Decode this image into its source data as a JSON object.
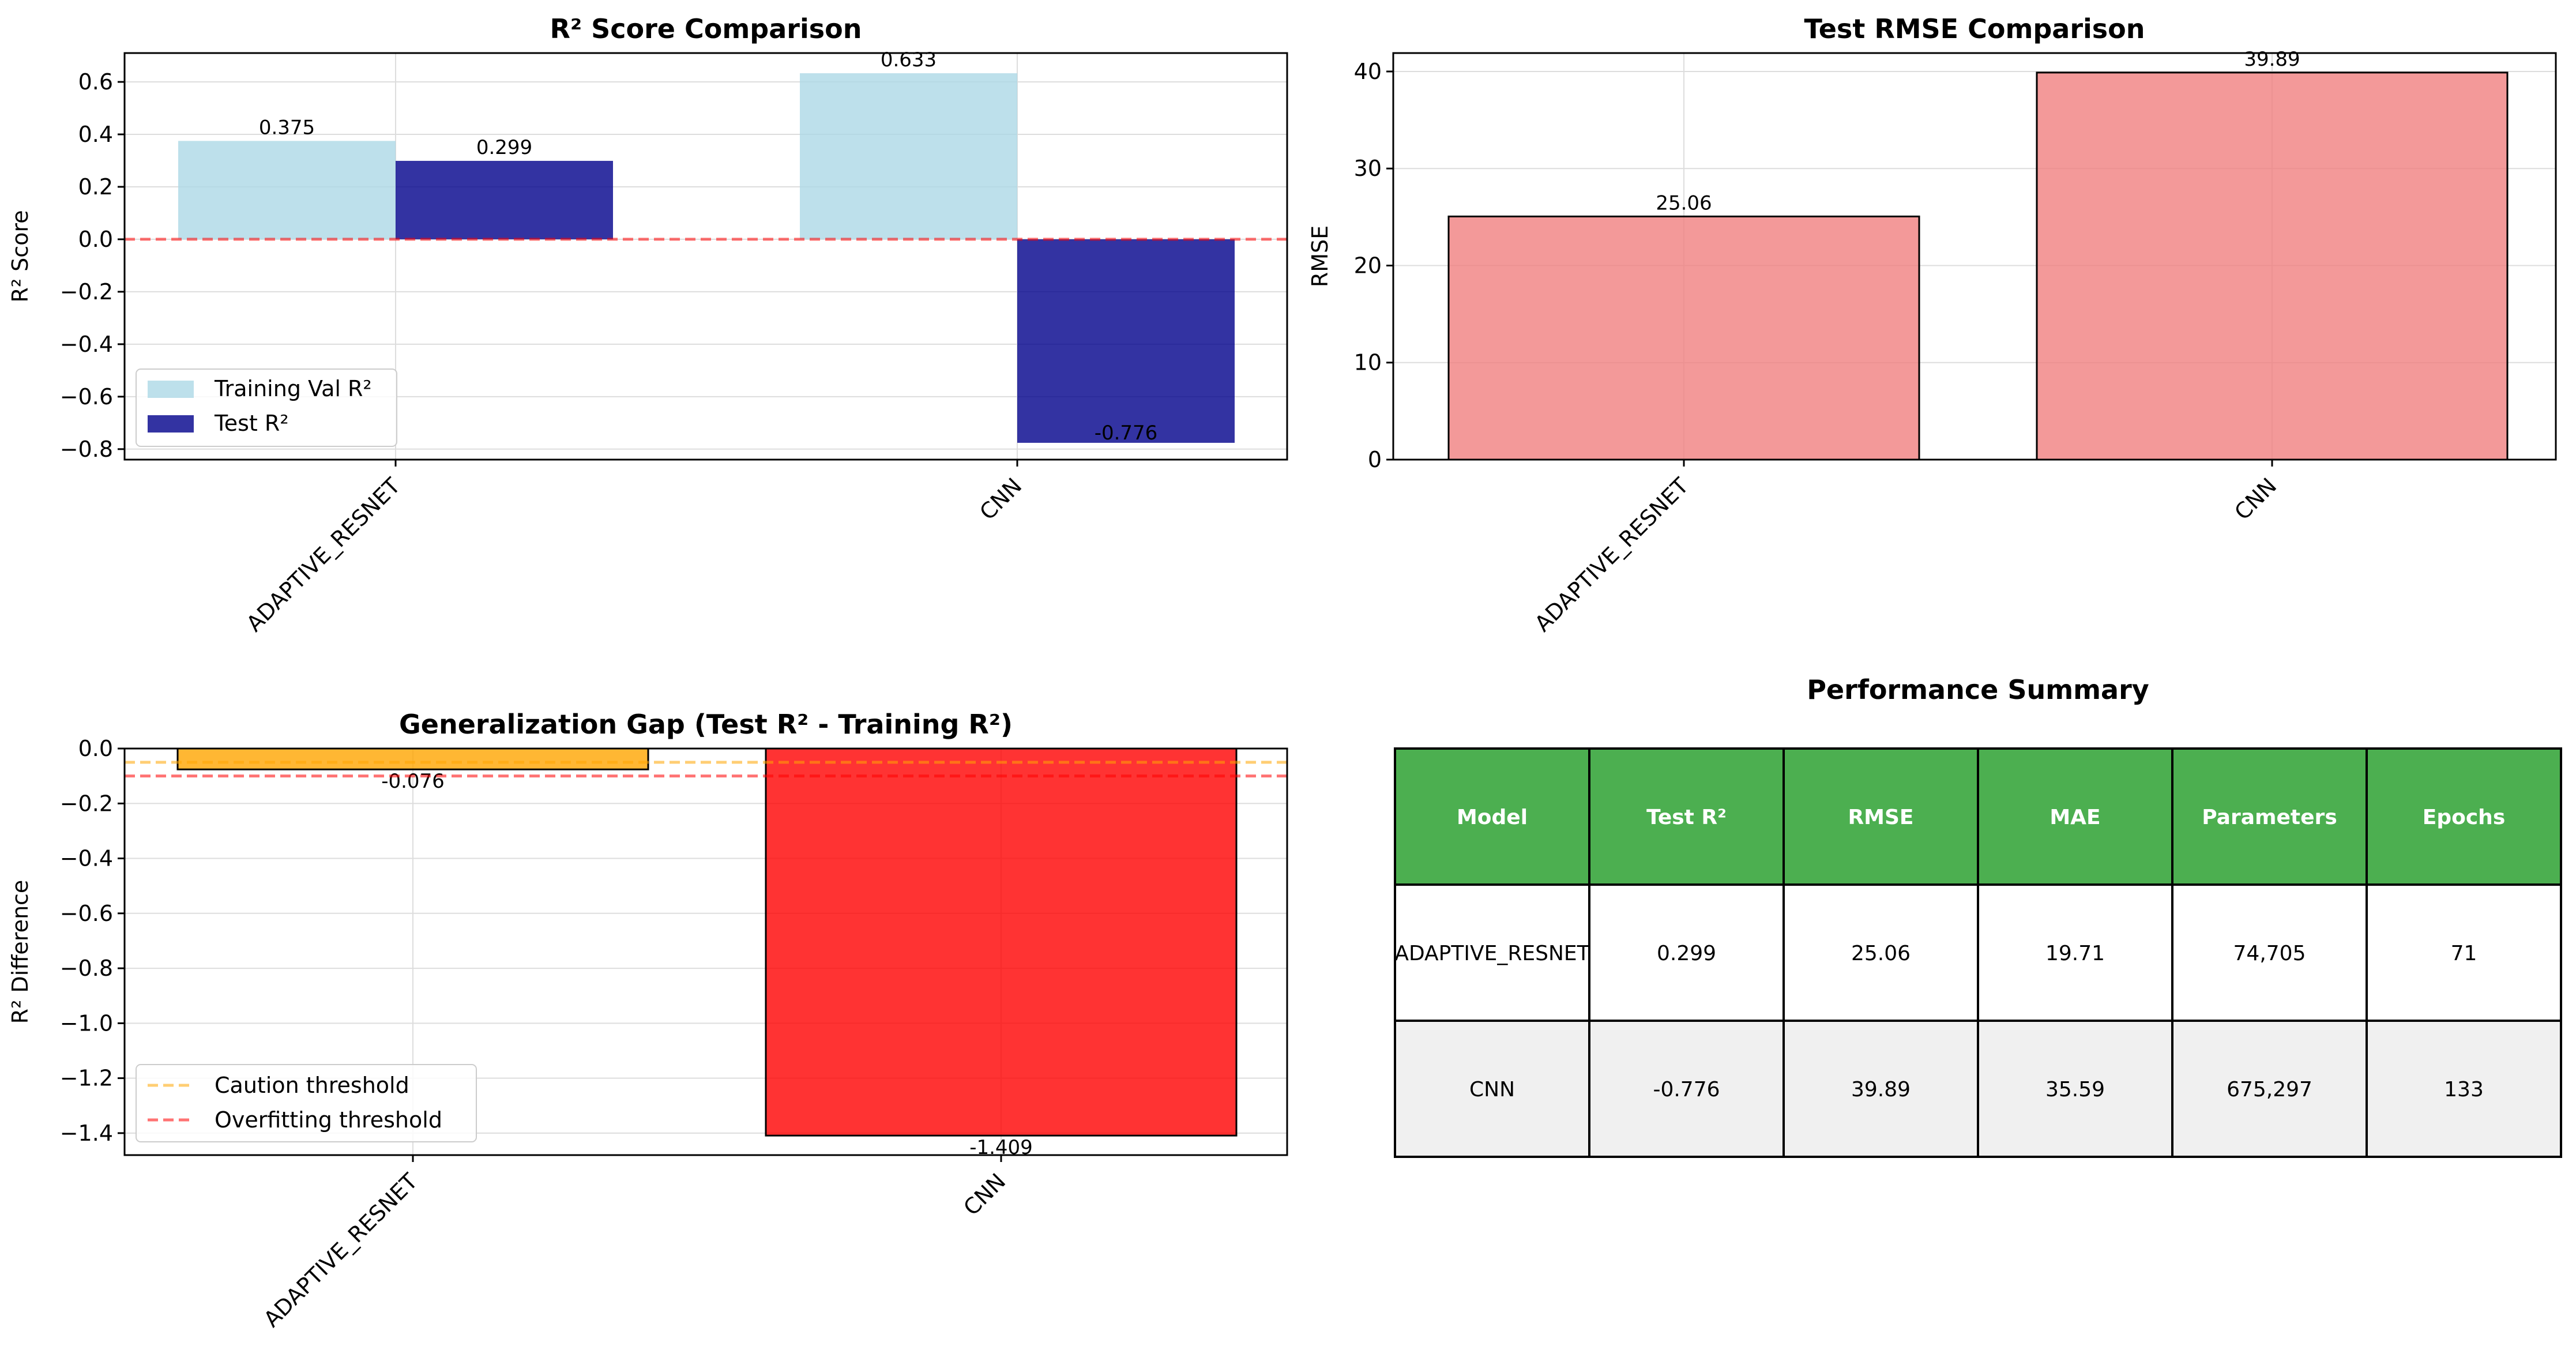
{
  "colors": {
    "train_bar": "#add8e6",
    "test_bar": "#00008b",
    "rmse_bar": "#f08080",
    "gap_small": "#ffa500",
    "gap_large": "#ff0000",
    "zero_line": "#ff0000",
    "caution_line": "#ffa500",
    "overfit_line": "#ff0000",
    "table_header": "#4caf50",
    "table_alt_row": "#f0f0f0"
  },
  "chart_data": [
    {
      "type": "bar",
      "title": "R² Score Comparison",
      "xlabel": "",
      "ylabel": "R² Score",
      "categories": [
        "ADAPTIVE_RESNET",
        "CNN"
      ],
      "series": [
        {
          "name": "Training Val R²",
          "values": [
            0.375,
            0.633
          ],
          "labels": [
            "0.375",
            "0.633"
          ],
          "color": "#add8e6"
        },
        {
          "name": "Test R²",
          "values": [
            0.299,
            -0.776
          ],
          "labels": [
            "0.299",
            "-0.776"
          ],
          "color": "#00008b"
        }
      ],
      "ylim": [
        -0.84,
        0.71
      ],
      "yticks": [
        0.6,
        0.4,
        0.2,
        0.0,
        -0.2,
        -0.4,
        -0.6,
        -0.8
      ],
      "ytick_labels": [
        "0.6",
        "0.4",
        "0.2",
        "0.0",
        "−0.2",
        "−0.4",
        "−0.6",
        "−0.8"
      ],
      "reference_line": 0.0,
      "grid": true,
      "legend_position": "lower-left"
    },
    {
      "type": "bar",
      "title": "Test RMSE Comparison",
      "xlabel": "",
      "ylabel": "RMSE",
      "categories": [
        "ADAPTIVE_RESNET",
        "CNN"
      ],
      "values": [
        25.06,
        39.89
      ],
      "labels": [
        "25.06",
        "39.89"
      ],
      "ylim": [
        0,
        41.9
      ],
      "yticks": [
        0,
        10,
        20,
        30,
        40
      ],
      "ytick_labels": [
        "0",
        "10",
        "20",
        "30",
        "40"
      ],
      "grid": true
    },
    {
      "type": "bar",
      "title": "Generalization Gap (Test R² - Training R²)",
      "xlabel": "",
      "ylabel": "R² Difference",
      "categories": [
        "ADAPTIVE_RESNET",
        "CNN"
      ],
      "values": [
        -0.076,
        -1.409
      ],
      "labels": [
        "-0.076",
        "-1.409"
      ],
      "bar_colors": [
        "#ffa500",
        "#ff0000"
      ],
      "ylim": [
        -1.48,
        0.0
      ],
      "yticks": [
        0.0,
        -0.2,
        -0.4,
        -0.6,
        -0.8,
        -1.0,
        -1.2,
        -1.4
      ],
      "ytick_labels": [
        "0.0",
        "−0.2",
        "−0.4",
        "−0.6",
        "−0.8",
        "−1.0",
        "−1.2",
        "−1.4"
      ],
      "thresholds": [
        {
          "name": "Caution threshold",
          "value": -0.05,
          "color": "#ffa500"
        },
        {
          "name": "Overfitting threshold",
          "value": -0.1,
          "color": "#ff0000"
        }
      ],
      "grid": true,
      "legend_position": "lower-left"
    },
    {
      "type": "table",
      "title": "Performance Summary",
      "columns": [
        "Model",
        "Test R²",
        "RMSE",
        "MAE",
        "Parameters",
        "Epochs"
      ],
      "rows": [
        [
          "ADAPTIVE_RESNET",
          "0.299",
          "25.06",
          "19.71",
          "74,705",
          "71"
        ],
        [
          "CNN",
          "-0.776",
          "39.89",
          "35.59",
          "675,297",
          "133"
        ]
      ]
    }
  ]
}
